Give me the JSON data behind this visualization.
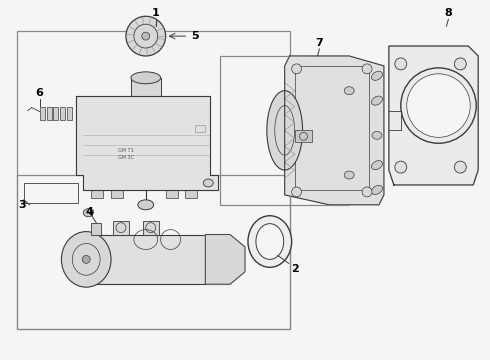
{
  "background_color": "#f5f5f5",
  "line_color": "#3a3a3a",
  "text_color": "#000000",
  "fig_width": 4.9,
  "fig_height": 3.6,
  "dpi": 100
}
